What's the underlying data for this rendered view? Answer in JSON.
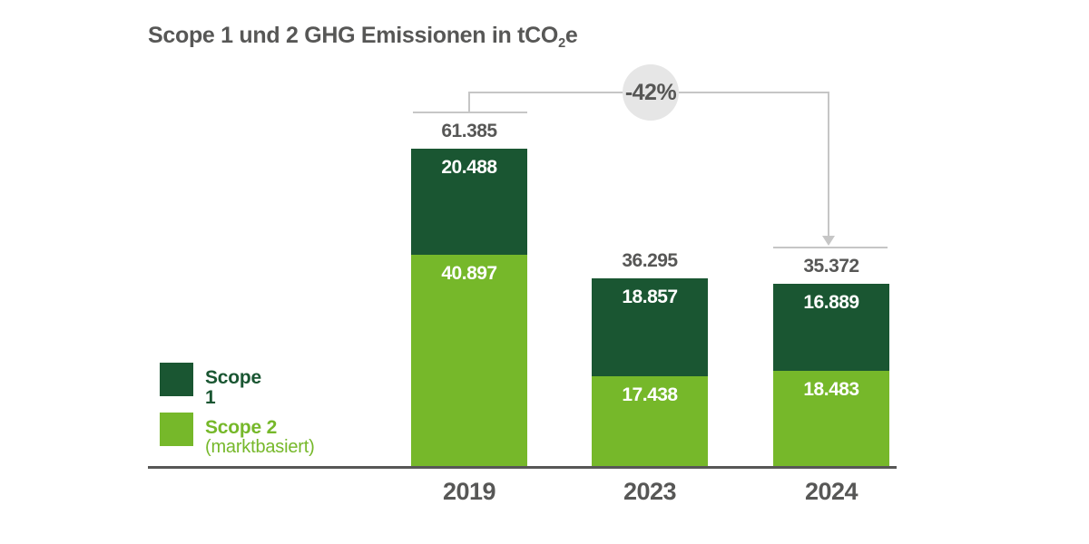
{
  "title": {
    "text_main": "Scope 1 und 2 GHG Emissionen in tCO",
    "subscript": "2",
    "text_end": "e"
  },
  "colors": {
    "scope1_dark_green": "#1a5632",
    "scope2_light_green": "#76b82a",
    "text_gray": "#575756",
    "annotation_line_gray": "#c6c6c6",
    "annotation_circle_bg": "#e6e6e6",
    "value_label_white": "#ffffff",
    "background": "#ffffff"
  },
  "legend": {
    "items": [
      {
        "label": "Scope 1",
        "sublabel": "",
        "color": "#1a5632"
      },
      {
        "label": "Scope 2",
        "sublabel": "(marktbasiert)",
        "color": "#76b82a"
      }
    ]
  },
  "chart_data": {
    "type": "bar",
    "stacked": true,
    "title": "Scope 1 und 2 GHG Emissionen in tCO2e",
    "unit": "tCO2e",
    "categories": [
      "2019",
      "2023",
      "2024"
    ],
    "series": [
      {
        "name": "Scope 1",
        "color": "#1a5632",
        "values": [
          20488,
          18857,
          16889
        ],
        "labels": [
          "20.488",
          "18.857",
          "16.889"
        ]
      },
      {
        "name": "Scope 2 (marktbasiert)",
        "color": "#76b82a",
        "values": [
          40897,
          17438,
          18483
        ],
        "labels": [
          "40.897",
          "17.438",
          "18.483"
        ]
      }
    ],
    "totals": [
      61385,
      36295,
      35372
    ],
    "total_labels": [
      "61.385",
      "36.295",
      "35.372"
    ],
    "annotation": {
      "text": "-42%",
      "from_category": "2019",
      "to_category": "2024"
    },
    "legend_position": "bottom-left",
    "grid": false,
    "ylim": [
      0,
      65000
    ]
  }
}
